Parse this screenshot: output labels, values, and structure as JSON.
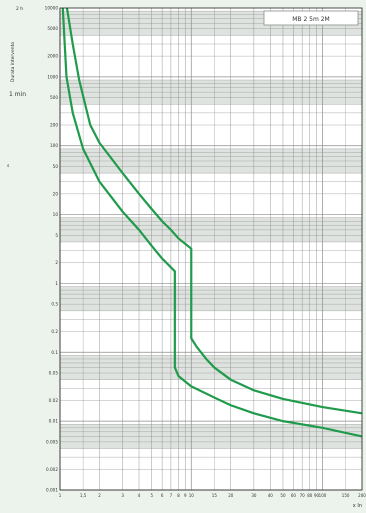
{
  "colors": {
    "background": "#ecf3ec",
    "plot_background": "#ffffff",
    "band": "#dfe3df",
    "grid": "#8c8c8c",
    "axis": "#222222",
    "curve": "#1f9b4b"
  },
  "chart_data": {
    "type": "line",
    "title": "",
    "legend_box_text": "MB 2 5m  2M",
    "x_axis_label": "x In",
    "y_axis_label": "Durata intervento",
    "y_unit_labels": [
      "2 h",
      "1 min",
      "s"
    ],
    "x_scale": "log",
    "y_scale": "log",
    "xlim": [
      1,
      200
    ],
    "ylim": [
      0.001,
      10000
    ],
    "grid": true,
    "x_ticks": [
      {
        "v": 1,
        "label": "1"
      },
      {
        "v": 1.5,
        "label": "1,5"
      },
      {
        "v": 2,
        "label": "2"
      },
      {
        "v": 3,
        "label": "3"
      },
      {
        "v": 4,
        "label": "4"
      },
      {
        "v": 5,
        "label": "5"
      },
      {
        "v": 6,
        "label": "6"
      },
      {
        "v": 7,
        "label": "7"
      },
      {
        "v": 8,
        "label": "8"
      },
      {
        "v": 9,
        "label": "9"
      },
      {
        "v": 10,
        "label": "10"
      },
      {
        "v": 15,
        "label": "15"
      },
      {
        "v": 20,
        "label": "20"
      },
      {
        "v": 30,
        "label": "30"
      },
      {
        "v": 40,
        "label": "40"
      },
      {
        "v": 50,
        "label": "50"
      },
      {
        "v": 60,
        "label": "60"
      },
      {
        "v": 70,
        "label": "70"
      },
      {
        "v": 80,
        "label": "80"
      },
      {
        "v": 90,
        "label": "90"
      },
      {
        "v": 100,
        "label": "100"
      },
      {
        "v": 150,
        "label": "150"
      },
      {
        "v": 200,
        "label": "200"
      }
    ],
    "y_ticks": [
      {
        "v": 10000,
        "label": "10000"
      },
      {
        "v": 5000,
        "label": "5000"
      },
      {
        "v": 2000,
        "label": "2000"
      },
      {
        "v": 1000,
        "label": "1000"
      },
      {
        "v": 500,
        "label": "500"
      },
      {
        "v": 200,
        "label": "200"
      },
      {
        "v": 100,
        "label": "100"
      },
      {
        "v": 50,
        "label": "50"
      },
      {
        "v": 20,
        "label": "20"
      },
      {
        "v": 10,
        "label": "10"
      },
      {
        "v": 5,
        "label": "5"
      },
      {
        "v": 2,
        "label": "2"
      },
      {
        "v": 1,
        "label": "1"
      },
      {
        "v": 0.5,
        "label": "0.5"
      },
      {
        "v": 0.2,
        "label": "0.2"
      },
      {
        "v": 0.1,
        "label": "0.1"
      },
      {
        "v": 0.05,
        "label": "0.05"
      },
      {
        "v": 0.02,
        "label": "0.02"
      },
      {
        "v": 0.01,
        "label": "0.01"
      },
      {
        "v": 0.005,
        "label": "0.005"
      },
      {
        "v": 0.002,
        "label": "0.002"
      },
      {
        "v": 0.001,
        "label": "0.001"
      }
    ],
    "series": [
      {
        "x": [
          1.05,
          1.12,
          1.25,
          1.5,
          2,
          3,
          4,
          5,
          6,
          7.5,
          7.5,
          8,
          10,
          15,
          20,
          30,
          50,
          100,
          200
        ],
        "y": [
          10000,
          1000,
          300,
          90,
          30,
          11,
          6,
          3.5,
          2.3,
          1.5,
          0.06,
          0.045,
          0.032,
          0.022,
          0.017,
          0.013,
          0.01,
          0.008,
          0.006
        ]
      },
      {
        "x": [
          1.13,
          1.25,
          1.4,
          1.7,
          2,
          3,
          4,
          5,
          6,
          7,
          8,
          10,
          10,
          11,
          13,
          15,
          20,
          30,
          50,
          100,
          200
        ],
        "y": [
          10000,
          3000,
          900,
          200,
          110,
          40,
          20,
          12,
          8,
          6,
          4.5,
          3.2,
          0.16,
          0.12,
          0.08,
          0.06,
          0.04,
          0.028,
          0.021,
          0.016,
          0.013
        ]
      }
    ]
  }
}
